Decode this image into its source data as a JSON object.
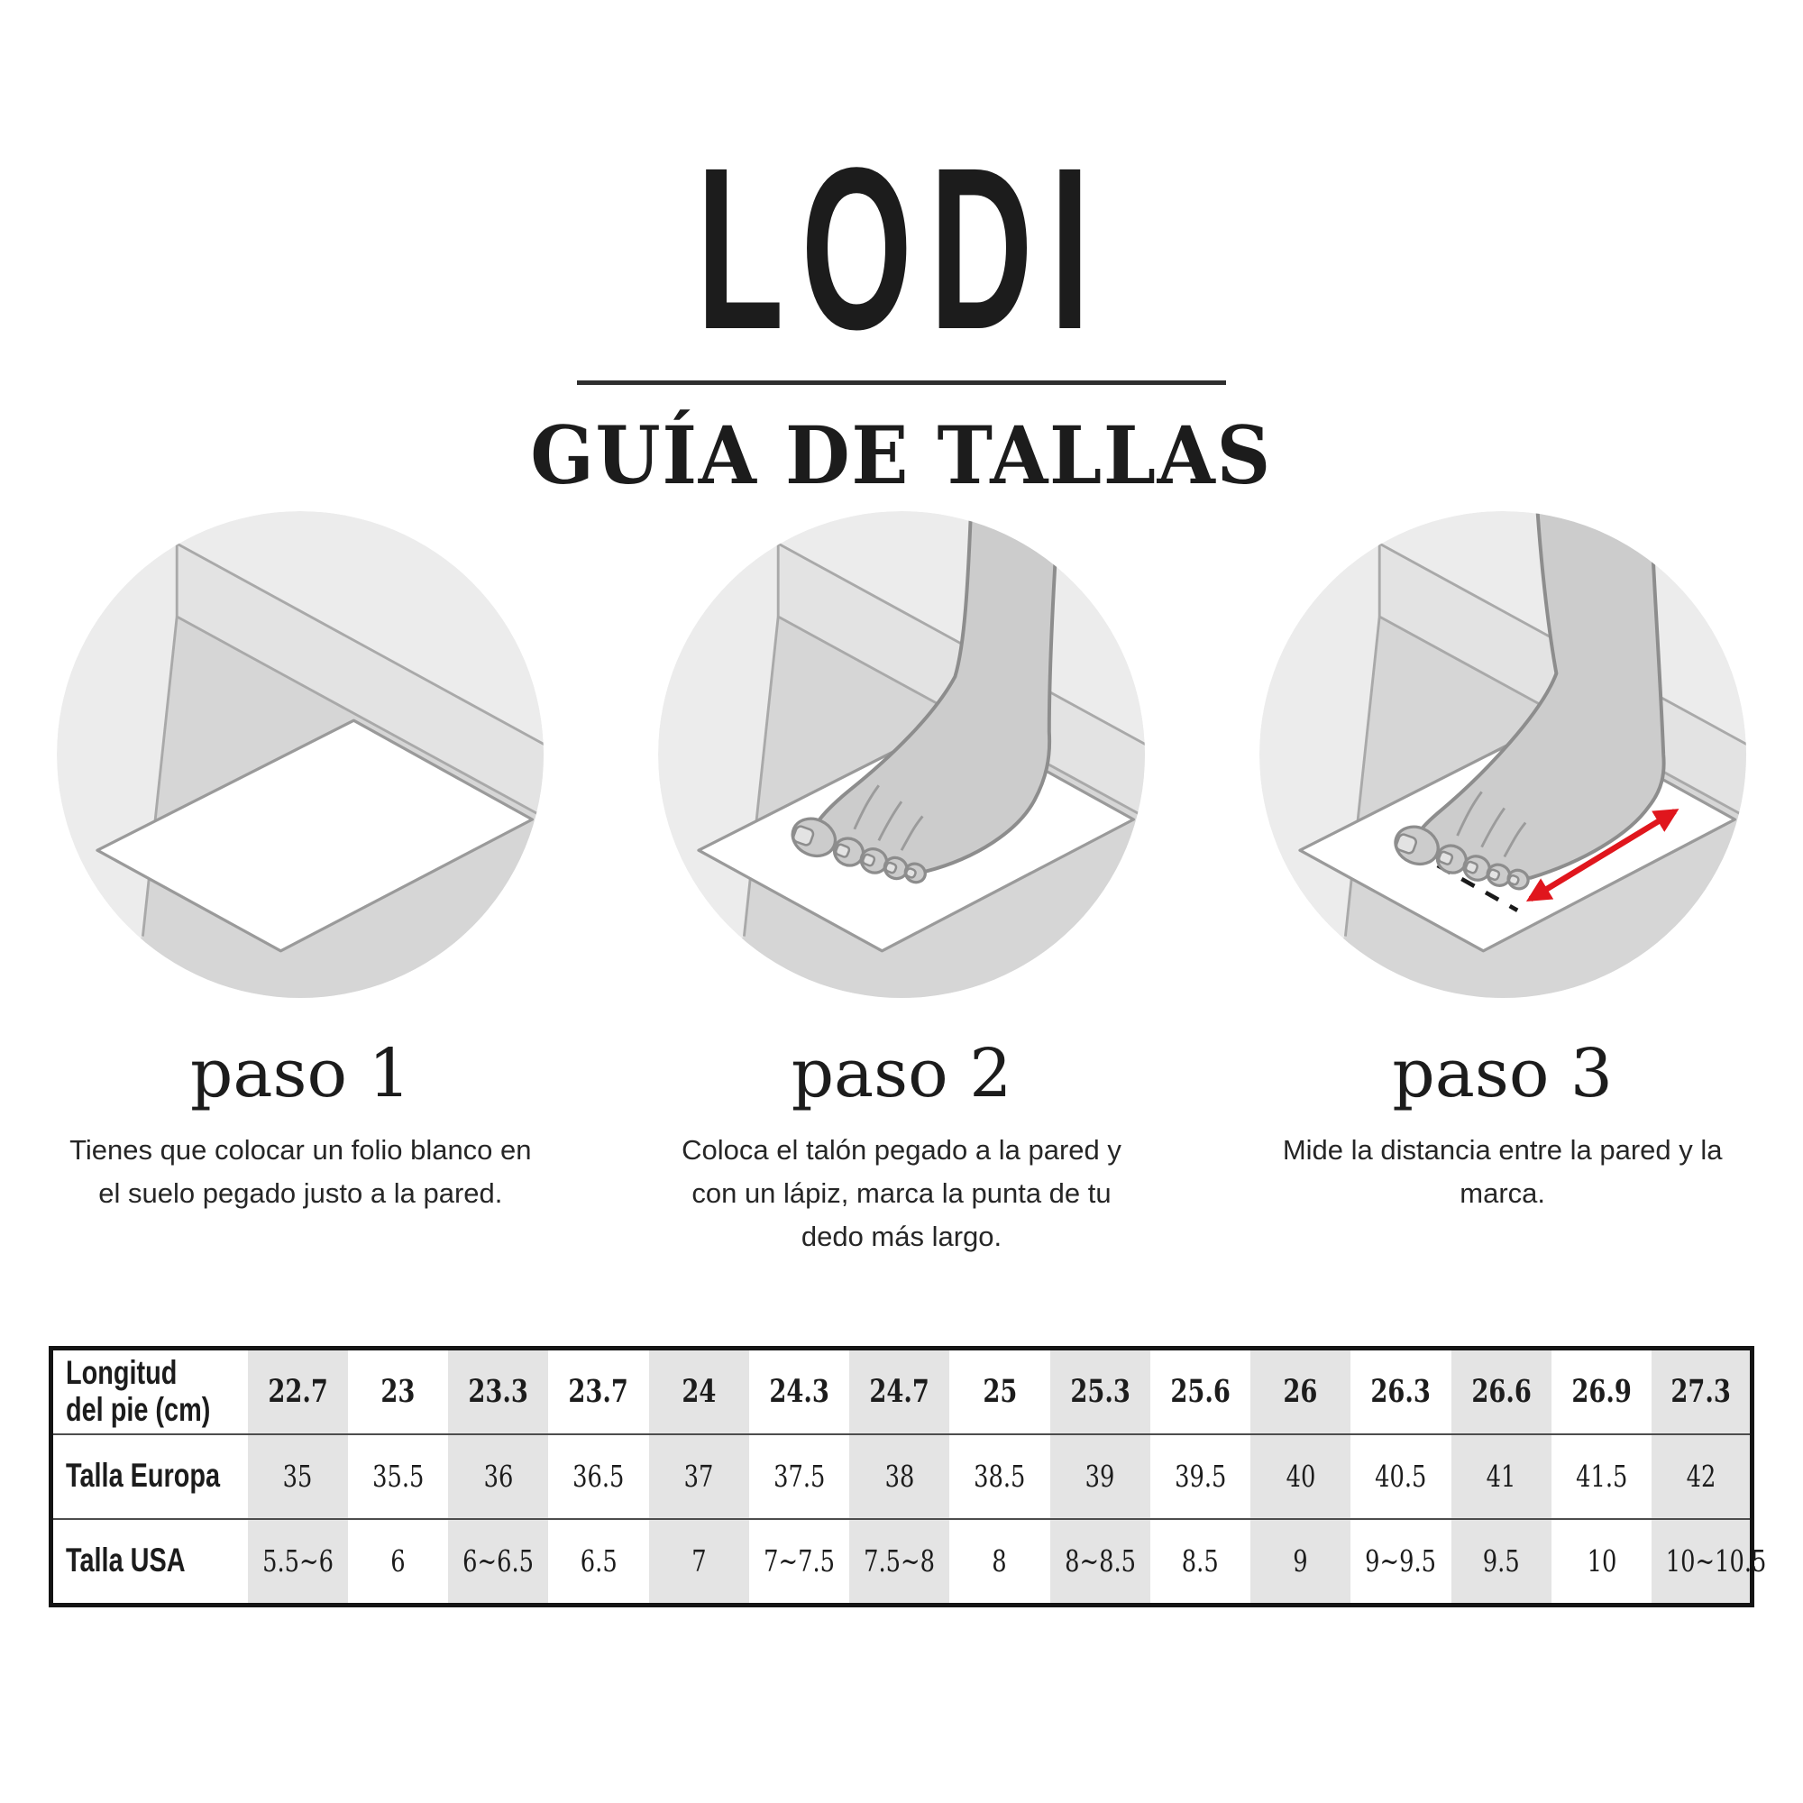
{
  "brand": {
    "title": "LODI",
    "subtitle": "GUÍA DE TALLAS"
  },
  "steps": [
    {
      "label": "paso 1",
      "description": "Tienes que colocar un folio blanco en el suelo pegado justo a la pared."
    },
    {
      "label": "paso 2",
      "description": "Coloca el talón pegado a la pared y con un lápiz, marca la punta de tu dedo más largo."
    },
    {
      "label": "paso 3",
      "description": "Mide la distancia entre la pared y la marca."
    }
  ],
  "size_table": {
    "rows": [
      {
        "label_lines": [
          "Longitud",
          "del pie (cm)"
        ],
        "header": true,
        "values": [
          "22.7",
          "23",
          "23.3",
          "23.7",
          "24",
          "24.3",
          "24.7",
          "25",
          "25.3",
          "25.6",
          "26",
          "26.3",
          "26.6",
          "26.9",
          "27.3"
        ]
      },
      {
        "label_lines": [
          "Talla Europa"
        ],
        "header": false,
        "values": [
          "35",
          "35.5",
          "36",
          "36.5",
          "37",
          "37.5",
          "38",
          "38.5",
          "39",
          "39.5",
          "40",
          "40.5",
          "41",
          "41.5",
          "42"
        ]
      },
      {
        "label_lines": [
          "Talla USA"
        ],
        "header": false,
        "values": [
          "5.5~6",
          "6",
          "6~6.5",
          "6.5",
          "7",
          "7~7.5",
          "7.5~8",
          "8",
          "8~8.5",
          "8.5",
          "9",
          "9~9.5",
          "9.5",
          "10",
          "10~10.5"
        ]
      }
    ]
  },
  "illustrations": {
    "step1": "paper-against-wall",
    "step2": "foot-on-paper",
    "step3": "foot-measured-with-arrow"
  },
  "colors": {
    "accent_red": "#e0161d",
    "table_shade": "#e4e4e4",
    "wall_light": "#ececec",
    "baseboard": "#e3e3e3",
    "floor": "#d6d6d6",
    "foot_fill": "#cccccc",
    "line_gray": "#a9a9a9"
  }
}
